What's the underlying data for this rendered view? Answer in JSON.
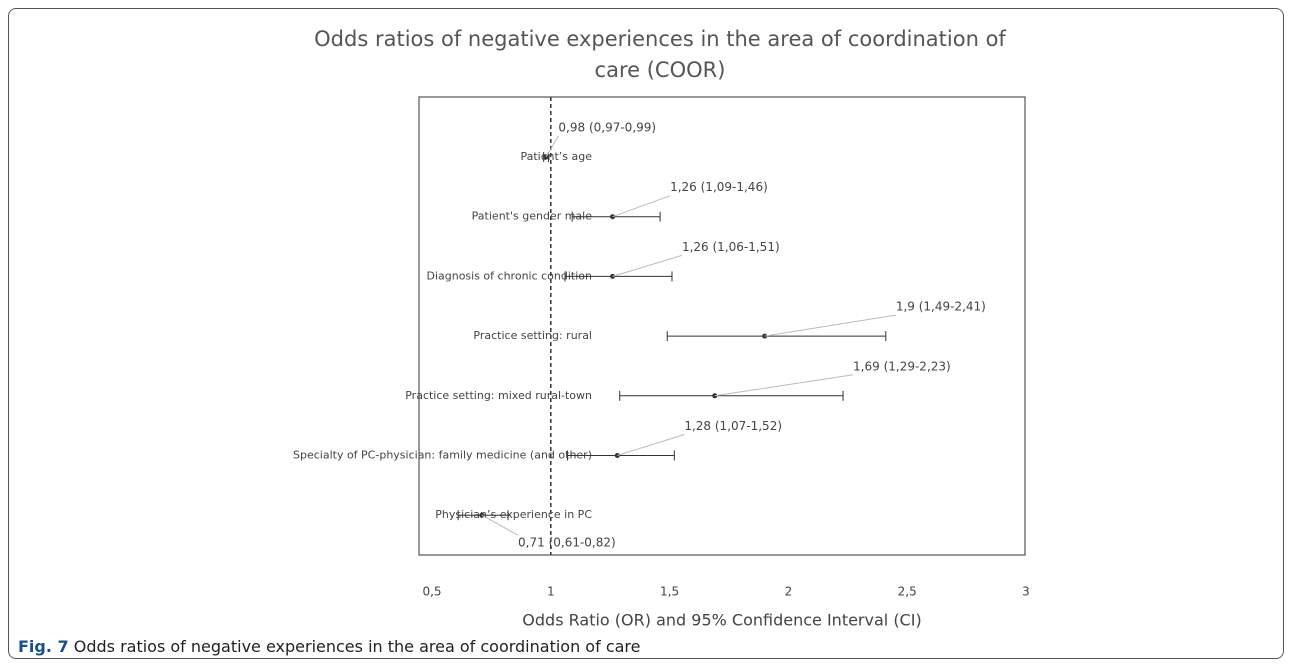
{
  "chart_data": {
    "type": "forest",
    "title": "Odds ratios of negative experiences in the area of coordination of care (COOR)",
    "x_label": "Odds Ratio (OR) and 95% Confidence Interval (CI)",
    "categories": [
      "Patient’s age",
      "Patient's gender male",
      "Diagnosis of chronic condition",
      "Practice setting: rural",
      "Practice setting: mixed rural-town",
      "Specialty of PC-physician: family medicine (and other)",
      "Physician’s experience in PC"
    ],
    "values": [
      0.98,
      1.26,
      1.26,
      1.9,
      1.69,
      1.28,
      0.71
    ],
    "lower": [
      0.97,
      1.09,
      1.06,
      1.49,
      1.29,
      1.07,
      0.61
    ],
    "upper": [
      0.99,
      1.46,
      1.51,
      2.41,
      2.23,
      1.52,
      0.82
    ],
    "value_labels": [
      "0,98 (0,97-0,99)",
      "1,26 (1,09-1,46)",
      "1,26 (1,06-1,51)",
      "1,9 (1,49-2,41)",
      "1,69 (1,29-2,23)",
      "1,28 (1,07-1,52)",
      "0,71 (0,61-0,82)"
    ],
    "xlim": [
      0.5,
      3
    ],
    "xticks": [
      {
        "value": 0.5,
        "label": "0,5"
      },
      1,
      {
        "value": 1.5,
        "label": "1,5"
      },
      2,
      {
        "value": 2.5,
        "label": "2,5"
      },
      3
    ],
    "reference_line": 1,
    "color": "#333333"
  },
  "caption": {
    "label": "Fig. 7",
    "text": "Odds ratios of negative experiences in the area of coordination of care"
  }
}
